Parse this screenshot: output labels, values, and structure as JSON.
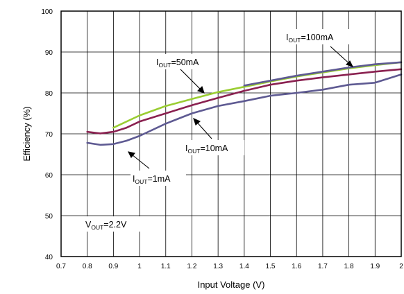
{
  "chart_data": {
    "type": "line",
    "xlabel": "Input Voltage (V)",
    "ylabel": "Efficiency (%)",
    "xlim": [
      0.7,
      2.0
    ],
    "ylim": [
      40,
      100
    ],
    "xticks": [
      0.7,
      0.8,
      0.9,
      1.0,
      1.1,
      1.2,
      1.3,
      1.4,
      1.5,
      1.6,
      1.7,
      1.8,
      1.9,
      2.0
    ],
    "xtick_labels": [
      "0.7",
      "0.8",
      "0.9",
      "1",
      "1.1",
      "1.2",
      "1.3",
      "1.4",
      "1.5",
      "1.6",
      "1.7",
      "1.8",
      "1.9",
      "2"
    ],
    "yticks": [
      40,
      50,
      60,
      70,
      80,
      90,
      100
    ],
    "ytick_labels": [
      "40",
      "50",
      "60",
      "70",
      "80",
      "90",
      "100"
    ],
    "grid": true,
    "series": [
      {
        "name": "I_OUT=1mA",
        "color": "#5e5a92",
        "x": [
          0.8,
          0.85,
          0.9,
          0.95,
          1.0,
          1.1,
          1.2,
          1.3,
          1.4,
          1.5,
          1.6,
          1.7,
          1.8,
          1.9,
          2.0
        ],
        "y": [
          67.8,
          67.3,
          67.5,
          68.3,
          69.5,
          72.5,
          75.0,
          76.8,
          78.0,
          79.3,
          80.0,
          80.8,
          82.0,
          82.5,
          84.5
        ]
      },
      {
        "name": "I_OUT=10mA",
        "color": "#8a2150",
        "x": [
          0.8,
          0.85,
          0.9,
          0.95,
          1.0,
          1.1,
          1.2,
          1.3,
          1.4,
          1.5,
          1.6,
          1.7,
          1.8,
          1.9,
          2.0
        ],
        "y": [
          70.5,
          70.1,
          70.5,
          71.5,
          73.0,
          75.0,
          77.0,
          78.8,
          80.5,
          82.0,
          83.0,
          83.8,
          84.5,
          85.2,
          85.8
        ]
      },
      {
        "name": "I_OUT=50mA",
        "color": "#9acd32",
        "x": [
          0.9,
          1.0,
          1.1,
          1.2,
          1.3,
          1.4,
          1.5,
          1.6,
          1.7,
          1.8,
          1.9,
          2.0
        ],
        "y": [
          71.5,
          74.5,
          76.8,
          78.5,
          80.2,
          81.5,
          82.8,
          84.0,
          85.0,
          86.0,
          86.8,
          87.5
        ]
      },
      {
        "name": "I_OUT=100mA",
        "color": "#5e5a92",
        "x": [
          1.4,
          1.5,
          1.6,
          1.7,
          1.8,
          1.9,
          2.0
        ],
        "y": [
          81.8,
          83.0,
          84.2,
          85.2,
          86.2,
          87.0,
          87.5
        ]
      }
    ],
    "annotations": [
      {
        "prefix": "I",
        "sub": "OUT",
        "suffix": "=100mA"
      },
      {
        "prefix": "I",
        "sub": "OUT",
        "suffix": "=50mA"
      },
      {
        "prefix": "I",
        "sub": "OUT",
        "suffix": "=10mA"
      },
      {
        "prefix": "I",
        "sub": "OUT",
        "suffix": "=1mA"
      },
      {
        "prefix": "V",
        "sub": "OUT",
        "suffix": "=2.2V"
      }
    ]
  }
}
